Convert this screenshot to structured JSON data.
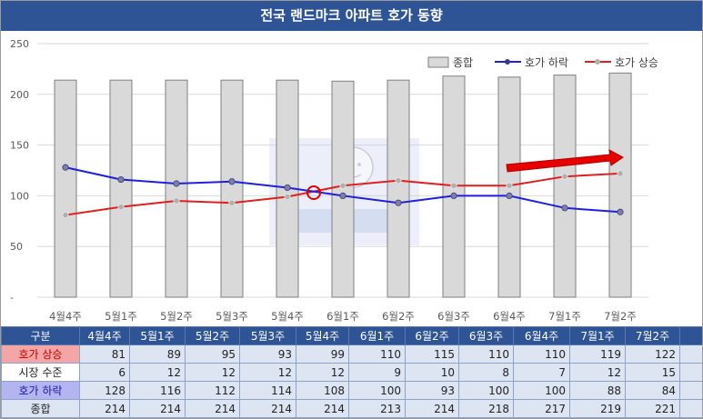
{
  "title": "전국 랜드마크 아파트 호가 동향",
  "colors": {
    "title_bg": "#2f5496",
    "bar_fill": "#d9d9d9",
    "bar_stroke": "#7f7f7f",
    "down": "#1f1fe0",
    "up": "#e01f1f",
    "arrow": "#e60000"
  },
  "chart_data": {
    "type": "bar+line",
    "categories": [
      "4월4주",
      "5월1주",
      "5월2주",
      "5월3주",
      "5월4주",
      "6월1주",
      "6월2주",
      "6월3주",
      "6월4주",
      "7월1주",
      "7월2주"
    ],
    "ylim": [
      0,
      250
    ],
    "yticks": [
      "-",
      "50",
      "100",
      "150",
      "200",
      "250"
    ],
    "grid": true,
    "legend_position": "top-right",
    "series": [
      {
        "name": "종합",
        "kind": "bar",
        "values": [
          214,
          214,
          214,
          214,
          214,
          213,
          214,
          218,
          217,
          219,
          221
        ]
      },
      {
        "name": "호가 하락",
        "kind": "line",
        "values": [
          128,
          116,
          112,
          114,
          108,
          100,
          93,
          100,
          100,
          88,
          84
        ]
      },
      {
        "name": "호가 상승",
        "kind": "line",
        "values": [
          81,
          89,
          95,
          93,
          99,
          110,
          115,
          110,
          110,
          119,
          122
        ]
      }
    ]
  },
  "table": {
    "header_label": "구분",
    "rows": [
      {
        "label": "호가 상승",
        "values": [
          81,
          89,
          95,
          93,
          99,
          110,
          115,
          110,
          110,
          119,
          122
        ]
      },
      {
        "label": "시장 수준",
        "values": [
          6,
          12,
          12,
          12,
          12,
          9,
          10,
          8,
          7,
          12,
          15
        ]
      },
      {
        "label": "호가 하락",
        "values": [
          128,
          116,
          112,
          114,
          108,
          100,
          93,
          100,
          100,
          88,
          84
        ]
      },
      {
        "label": "종합",
        "values": [
          214,
          214,
          214,
          214,
          214,
          213,
          214,
          218,
          217,
          219,
          221
        ]
      }
    ]
  }
}
